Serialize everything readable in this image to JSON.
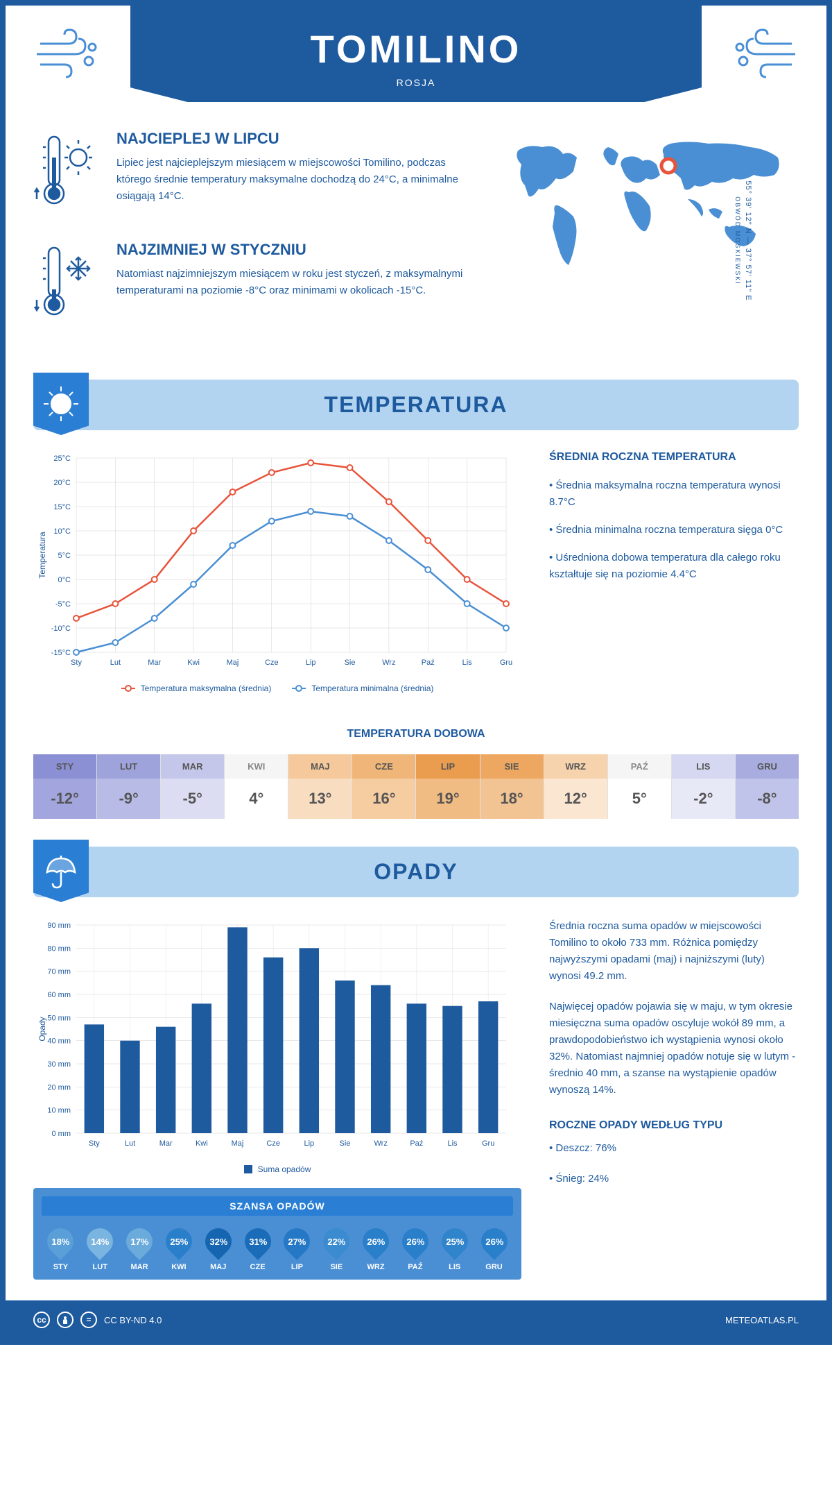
{
  "header": {
    "city": "TOMILINO",
    "country": "ROSJA"
  },
  "coords": {
    "lat": "55° 39' 12\" N — 37° 57' 11\" E",
    "region": "OBWÓD MOSKIEWSKI"
  },
  "intro": {
    "hot": {
      "title": "NAJCIEPLEJ W LIPCU",
      "text": "Lipiec jest najcieplejszym miesiącem w miejscowości Tomilino, podczas którego średnie temperatury maksymalne dochodzą do 24°C, a minimalne osiągają 14°C."
    },
    "cold": {
      "title": "NAJZIMNIEJ W STYCZNIU",
      "text": "Natomiast najzimniejszym miesiącem w roku jest styczeń, z maksymalnymi temperaturami na poziomie -8°C oraz minimami w okolicach -15°C."
    }
  },
  "temp_section": {
    "title": "TEMPERATURA",
    "stats_title": "ŚREDNIA ROCZNA TEMPERATURA",
    "stat1": "• Średnia maksymalna roczna temperatura wynosi 8.7°C",
    "stat2": "• Średnia minimalna roczna temperatura sięga 0°C",
    "stat3": "• Uśredniona dobowa temperatura dla całego roku kształtuje się na poziomie 4.4°C",
    "legend_max": "Temperatura maksymalna (średnia)",
    "legend_min": "Temperatura minimalna (średnia)",
    "y_title": "Temperatura",
    "chart": {
      "months": [
        "Sty",
        "Lut",
        "Mar",
        "Kwi",
        "Maj",
        "Cze",
        "Lip",
        "Sie",
        "Wrz",
        "Paź",
        "Lis",
        "Gru"
      ],
      "max_values": [
        -8,
        -5,
        0,
        10,
        18,
        22,
        24,
        23,
        16,
        8,
        0,
        -5
      ],
      "min_values": [
        -15,
        -13,
        -8,
        -1,
        7,
        12,
        14,
        13,
        8,
        2,
        -5,
        -10
      ],
      "ymin": -15,
      "ymax": 25,
      "ystep": 5,
      "max_color": "#e8533a",
      "min_color": "#4a8fd4",
      "grid_color": "#d0d0d0",
      "bg_color": "#ffffff"
    }
  },
  "daily": {
    "title": "TEMPERATURA DOBOWA",
    "cells": [
      {
        "m": "STY",
        "v": "-12°",
        "hbg": "#8b8fd4",
        "vbg": "#a3a6de"
      },
      {
        "m": "LUT",
        "v": "-9°",
        "hbg": "#9fa3db",
        "vbg": "#b8bbe6"
      },
      {
        "m": "MAR",
        "v": "-5°",
        "hbg": "#c5c7ea",
        "vbg": "#dcddf2"
      },
      {
        "m": "KWI",
        "v": "4°",
        "hbg": "#f5f5f5",
        "vbg": "#ffffff"
      },
      {
        "m": "MAJ",
        "v": "13°",
        "hbg": "#f5c99b",
        "vbg": "#f9ddc0"
      },
      {
        "m": "CZE",
        "v": "16°",
        "hbg": "#f0b578",
        "vbg": "#f5cda0"
      },
      {
        "m": "LIP",
        "v": "19°",
        "hbg": "#eb9d4f",
        "vbg": "#f1bc84"
      },
      {
        "m": "SIE",
        "v": "18°",
        "hbg": "#eea760",
        "vbg": "#f3c493"
      },
      {
        "m": "WRZ",
        "v": "12°",
        "hbg": "#f7d3ad",
        "vbg": "#fbe6d1"
      },
      {
        "m": "PAŹ",
        "v": "5°",
        "hbg": "#f5f5f5",
        "vbg": "#ffffff"
      },
      {
        "m": "LIS",
        "v": "-2°",
        "hbg": "#d6d7f0",
        "vbg": "#e8e9f7"
      },
      {
        "m": "GRU",
        "v": "-8°",
        "hbg": "#a8acdf",
        "vbg": "#c1c4ea"
      }
    ]
  },
  "precip_section": {
    "title": "OPADY",
    "y_title": "Opady",
    "legend": "Suma opadów",
    "para1": "Średnia roczna suma opadów w miejscowości Tomilino to około 733 mm. Różnica pomiędzy najwyższymi opadami (maj) i najniższymi (luty) wynosi 49.2 mm.",
    "para2": "Najwięcej opadów pojawia się w maju, w tym okresie miesięczna suma opadów oscyluje wokół 89 mm, a prawdopodobieństwo ich wystąpienia wynosi około 32%. Natomiast najmniej opadów notuje się w lutym - średnio 40 mm, a szanse na wystąpienie opadów wynoszą 14%.",
    "type_title": "ROCZNE OPADY WEDŁUG TYPU",
    "type1": "• Deszcz: 76%",
    "type2": "• Śnieg: 24%",
    "chart": {
      "months": [
        "Sty",
        "Lut",
        "Mar",
        "Kwi",
        "Maj",
        "Cze",
        "Lip",
        "Sie",
        "Wrz",
        "Paź",
        "Lis",
        "Gru"
      ],
      "values": [
        47,
        40,
        46,
        56,
        89,
        76,
        80,
        66,
        64,
        56,
        55,
        57
      ],
      "ymin": 0,
      "ymax": 90,
      "ystep": 10,
      "bar_color": "#1e5a9e",
      "grid_color": "#d0d0d0"
    },
    "chance": {
      "title": "SZANSA OPADÓW",
      "cells": [
        {
          "m": "STY",
          "v": "18%",
          "c": "#5a9fd8"
        },
        {
          "m": "LUT",
          "v": "14%",
          "c": "#7ab4e0"
        },
        {
          "m": "MAR",
          "v": "17%",
          "c": "#6aabdc"
        },
        {
          "m": "KWI",
          "v": "25%",
          "c": "#2a7fca"
        },
        {
          "m": "MAJ",
          "v": "32%",
          "c": "#1565b0"
        },
        {
          "m": "CZE",
          "v": "31%",
          "c": "#1a6cb8"
        },
        {
          "m": "LIP",
          "v": "27%",
          "c": "#2578c5"
        },
        {
          "m": "SIE",
          "v": "22%",
          "c": "#3a8bd0"
        },
        {
          "m": "WRZ",
          "v": "26%",
          "c": "#2a7fca"
        },
        {
          "m": "PAŹ",
          "v": "26%",
          "c": "#2a7fca"
        },
        {
          "m": "LIS",
          "v": "25%",
          "c": "#3084cc"
        },
        {
          "m": "GRU",
          "v": "26%",
          "c": "#2a7fca"
        }
      ]
    }
  },
  "footer": {
    "license": "CC BY-ND 4.0",
    "site": "METEOATLAS.PL"
  }
}
